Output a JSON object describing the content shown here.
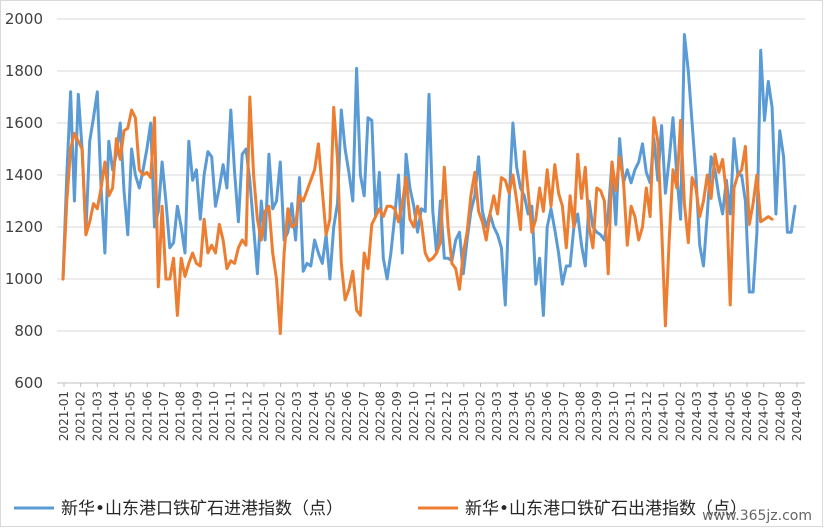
{
  "chart_data": {
    "type": "line",
    "title": "",
    "xlabel": "",
    "ylabel": "",
    "ylim": [
      600,
      2000
    ],
    "yticks": [
      600,
      800,
      1000,
      1200,
      1400,
      1600,
      1800,
      2000
    ],
    "grid": "horizontal",
    "legend_position": "bottom",
    "x_tick_labels": [
      "2021-01",
      "2021-02",
      "2021-03",
      "2021-04",
      "2021-05",
      "2021-06",
      "2021-07",
      "2021-08",
      "2021-09",
      "2021-10",
      "2021-11",
      "2021-12",
      "2022-01",
      "2022-02",
      "2022-03",
      "2022-04",
      "2022-05",
      "2022-06",
      "2022-07",
      "2022-08",
      "2022-09",
      "2022-10",
      "2022-11",
      "2022-12",
      "2023-01",
      "2023-02",
      "2023-03",
      "2023-04",
      "2023-05",
      "2023-06",
      "2023-07",
      "2023-08",
      "2023-09",
      "2023-10",
      "2023-11",
      "2023-12",
      "2024-01",
      "2024-02",
      "2024-03",
      "2024-04",
      "2024-05",
      "2024-06",
      "2024-07",
      "2024-08",
      "2024-09"
    ],
    "x_start": "2021-01",
    "series": [
      {
        "name": "新华•山东港口铁矿石进港指数（点）",
        "color": "#5b9bd5",
        "values": [
          1000,
          1400,
          1720,
          1300,
          1710,
          1500,
          1180,
          1530,
          1620,
          1720,
          1350,
          1100,
          1530,
          1420,
          1480,
          1600,
          1340,
          1170,
          1500,
          1400,
          1350,
          1420,
          1500,
          1600,
          1200,
          1260,
          1450,
          1300,
          1120,
          1140,
          1280,
          1200,
          1100,
          1530,
          1380,
          1420,
          1230,
          1400,
          1490,
          1470,
          1280,
          1350,
          1440,
          1350,
          1650,
          1410,
          1220,
          1480,
          1500,
          1380,
          1200,
          1020,
          1300,
          1150,
          1480,
          1270,
          1300,
          1450,
          1150,
          1180,
          1290,
          1150,
          1390,
          1030,
          1060,
          1050,
          1150,
          1100,
          1060,
          1170,
          1000,
          1200,
          1290,
          1650,
          1500,
          1410,
          1300,
          1810,
          1400,
          1320,
          1620,
          1610,
          1240,
          1410,
          1080,
          1000,
          1100,
          1240,
          1400,
          1100,
          1480,
          1350,
          1280,
          1180,
          1270,
          1260,
          1710,
          1260,
          1100,
          1300,
          1080,
          1080,
          1070,
          1150,
          1180,
          1020,
          1150,
          1260,
          1320,
          1470,
          1260,
          1200,
          1250,
          1200,
          1170,
          1120,
          900,
          1300,
          1600,
          1430,
          1350,
          1320,
          1250,
          1280,
          980,
          1080,
          860,
          1200,
          1270,
          1190,
          1100,
          980,
          1050,
          1050,
          1200,
          1250,
          1130,
          1050,
          1300,
          1200,
          1180,
          1170,
          1150,
          1250,
          1450,
          1210,
          1540,
          1370,
          1420,
          1370,
          1420,
          1450,
          1520,
          1410,
          1370,
          1540,
          1380,
          1590,
          1330,
          1460,
          1620,
          1400,
          1230,
          1940,
          1800,
          1600,
          1400,
          1130,
          1050,
          1250,
          1470,
          1420,
          1320,
          1250,
          1380,
          1250,
          1540,
          1400,
          1400,
          1300,
          950,
          950,
          1180,
          1880,
          1610,
          1760,
          1660,
          1250,
          1570,
          1470,
          1180,
          1180,
          1280
        ]
      },
      {
        "name": "新华•山东港口铁矿石出港指数（点）",
        "color": "#ed7d31",
        "values": [
          1000,
          1300,
          1500,
          1560,
          1530,
          1500,
          1170,
          1220,
          1290,
          1270,
          1350,
          1450,
          1320,
          1350,
          1540,
          1460,
          1570,
          1580,
          1650,
          1620,
          1420,
          1400,
          1410,
          1390,
          1620,
          970,
          1280,
          1000,
          1000,
          1080,
          860,
          1080,
          1010,
          1060,
          1100,
          1060,
          1050,
          1230,
          1100,
          1130,
          1100,
          1210,
          1150,
          1040,
          1070,
          1060,
          1120,
          1150,
          1130,
          1700,
          1400,
          1230,
          1150,
          1260,
          1280,
          1100,
          1000,
          790,
          1100,
          1270,
          1200,
          1210,
          1320,
          1300,
          1340,
          1380,
          1420,
          1520,
          1340,
          1170,
          1230,
          1660,
          1460,
          1060,
          920,
          960,
          1030,
          880,
          860,
          1100,
          1040,
          1210,
          1240,
          1270,
          1240,
          1280,
          1280,
          1270,
          1220,
          1290,
          1390,
          1230,
          1200,
          1280,
          1220,
          1100,
          1070,
          1080,
          1100,
          1140,
          1430,
          1200,
          1060,
          1040,
          960,
          1100,
          1180,
          1320,
          1410,
          1260,
          1220,
          1150,
          1250,
          1320,
          1250,
          1390,
          1380,
          1330,
          1400,
          1300,
          1190,
          1490,
          1340,
          1180,
          1230,
          1350,
          1260,
          1420,
          1280,
          1440,
          1330,
          1280,
          1120,
          1320,
          1200,
          1480,
          1310,
          1430,
          1200,
          1120,
          1350,
          1340,
          1300,
          1020,
          1450,
          1340,
          1470,
          1380,
          1130,
          1280,
          1240,
          1150,
          1200,
          1350,
          1240,
          1620,
          1530,
          1200,
          820,
          1150,
          1420,
          1350,
          1610,
          1290,
          1140,
          1390,
          1350,
          1240,
          1300,
          1400,
          1310,
          1480,
          1410,
          1460,
          1330,
          900,
          1350,
          1400,
          1420,
          1510,
          1210,
          1290,
          1400,
          1220,
          1230,
          1240,
          1230
        ]
      }
    ]
  },
  "watermark": "www.365jz.com"
}
